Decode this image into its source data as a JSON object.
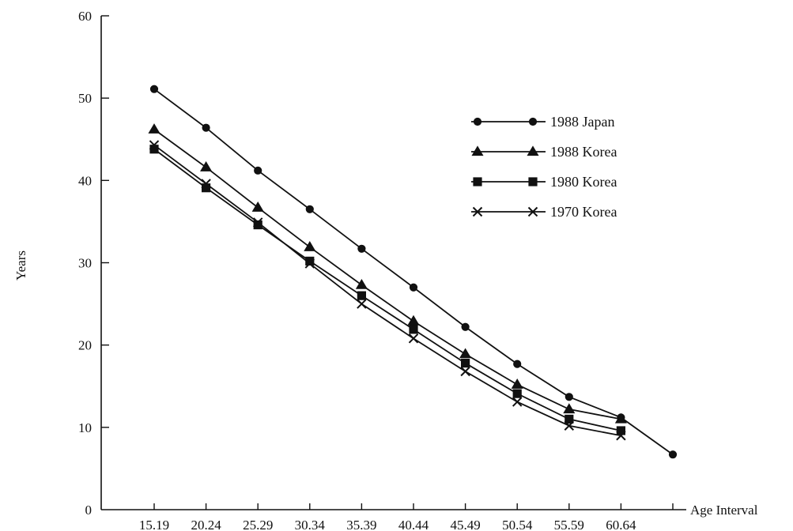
{
  "chart_data": {
    "type": "line",
    "categories": [
      "15.19",
      "20.24",
      "25.29",
      "30.34",
      "35.39",
      "40.44",
      "45.49",
      "50.54",
      "55.59",
      "60.64",
      ""
    ],
    "xlabel": "Age Interval",
    "ylabel": "Years",
    "ylim": [
      0,
      60
    ],
    "yticks": [
      0,
      10,
      20,
      30,
      40,
      50,
      60
    ],
    "grid": false,
    "legend_position": "top-right",
    "series": [
      {
        "name": "1988 Japan",
        "marker": "circle",
        "values": [
          51.1,
          46.4,
          41.2,
          36.5,
          31.7,
          27.0,
          22.2,
          17.7,
          13.7,
          11.2,
          6.7
        ]
      },
      {
        "name": "1988 Korea",
        "marker": "triangle",
        "values": [
          46.2,
          41.6,
          36.7,
          31.9,
          27.3,
          22.9,
          18.9,
          15.2,
          12.2,
          11.0,
          null
        ]
      },
      {
        "name": "1980 Korea",
        "marker": "square",
        "values": [
          43.8,
          39.1,
          34.6,
          30.2,
          26.0,
          21.9,
          17.8,
          14.1,
          11.0,
          9.6,
          null
        ]
      },
      {
        "name": "1970 Korea",
        "marker": "x",
        "values": [
          44.3,
          39.6,
          34.9,
          29.9,
          25.0,
          20.8,
          16.8,
          13.1,
          10.2,
          9.0,
          null
        ]
      }
    ]
  }
}
